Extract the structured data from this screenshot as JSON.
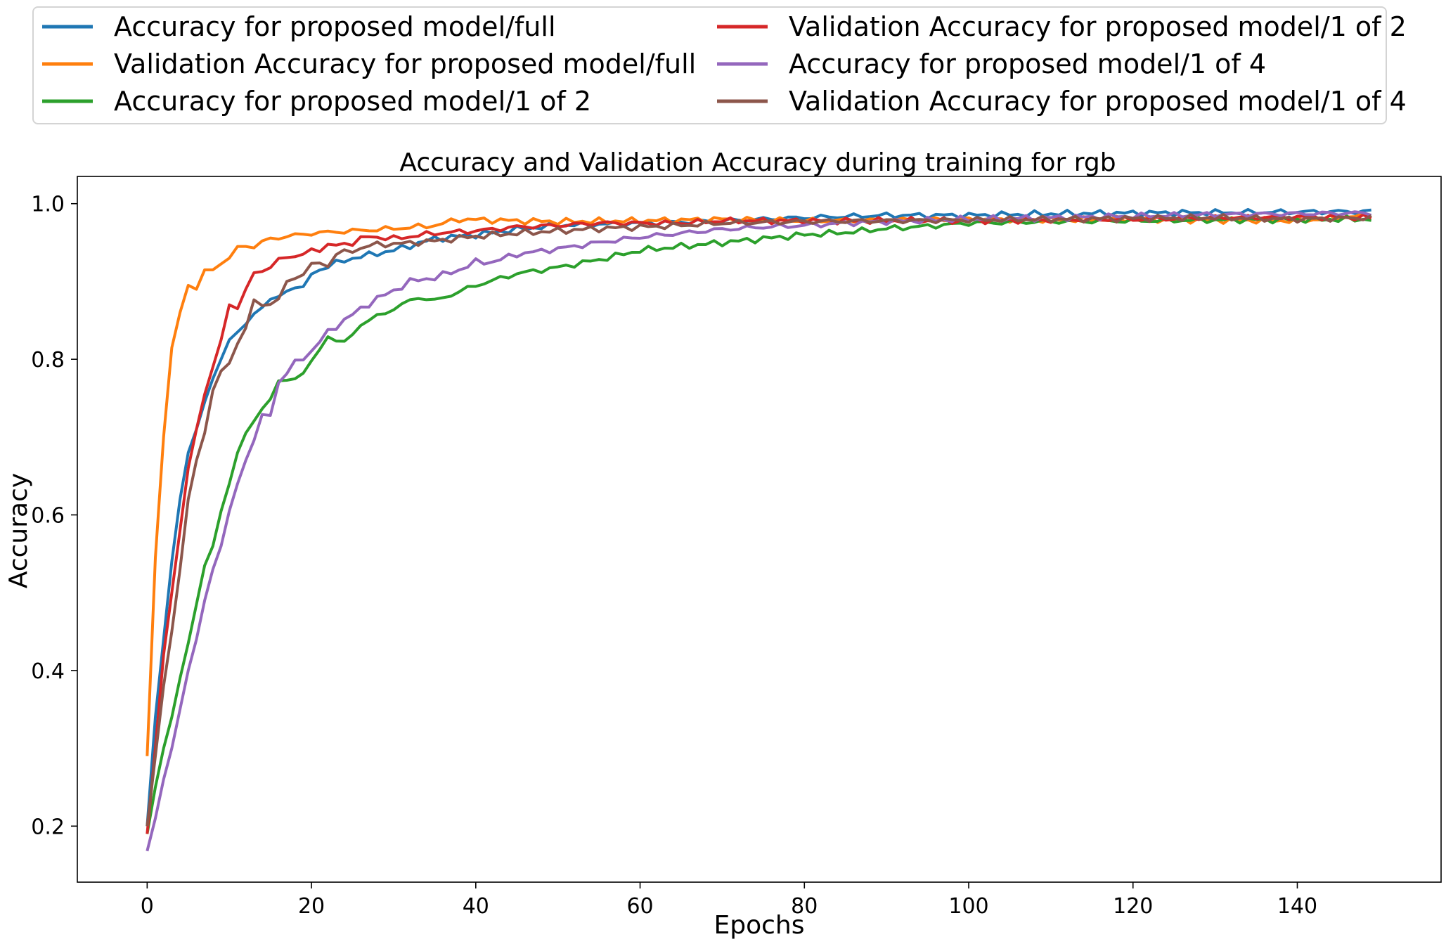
{
  "chart_data": {
    "type": "line",
    "title": "Accuracy and Validation Accuracy during training for rgb",
    "xlabel": "Epochs",
    "ylabel": "Accuracy",
    "xlim": [
      -8.5,
      157.5
    ],
    "ylim": [
      0.128,
      1.035
    ],
    "xticks": [
      0,
      20,
      40,
      60,
      80,
      100,
      120,
      140
    ],
    "yticks": [
      0.2,
      0.4,
      0.6,
      0.8,
      1.0
    ],
    "xtick_labels": [
      "0",
      "20",
      "40",
      "60",
      "80",
      "100",
      "120",
      "140"
    ],
    "ytick_labels": [
      "0.2",
      "0.4",
      "0.6",
      "0.8",
      "1.0"
    ],
    "grid": false,
    "legend_position": "above-plot, two columns",
    "x": {
      "start": 0,
      "end": 149,
      "step": 1
    },
    "series": [
      {
        "name": "Accuracy for proposed model/full",
        "color": "#1f77b4",
        "anchors": [
          [
            0,
            0.2
          ],
          [
            1,
            0.34
          ],
          [
            2,
            0.44
          ],
          [
            3,
            0.54
          ],
          [
            4,
            0.62
          ],
          [
            5,
            0.68
          ],
          [
            6,
            0.71
          ],
          [
            7,
            0.745
          ],
          [
            8,
            0.775
          ],
          [
            9,
            0.8
          ],
          [
            10,
            0.825
          ],
          [
            12,
            0.845
          ],
          [
            14,
            0.87
          ],
          [
            16,
            0.88
          ],
          [
            18,
            0.895
          ],
          [
            19,
            0.89
          ],
          [
            20,
            0.91
          ],
          [
            22,
            0.92
          ],
          [
            25,
            0.93
          ],
          [
            30,
            0.94
          ],
          [
            35,
            0.955
          ],
          [
            40,
            0.96
          ],
          [
            45,
            0.967
          ],
          [
            50,
            0.972
          ],
          [
            60,
            0.975
          ],
          [
            70,
            0.978
          ],
          [
            80,
            0.982
          ],
          [
            90,
            0.985
          ],
          [
            100,
            0.985
          ],
          [
            110,
            0.987
          ],
          [
            120,
            0.988
          ],
          [
            149,
            0.99
          ]
        ]
      },
      {
        "name": "Validation Accuracy for proposed model/full",
        "color": "#ff7f0e",
        "anchors": [
          [
            0,
            0.29
          ],
          [
            1,
            0.545
          ],
          [
            2,
            0.7
          ],
          [
            3,
            0.815
          ],
          [
            4,
            0.86
          ],
          [
            5,
            0.895
          ],
          [
            6,
            0.89
          ],
          [
            7,
            0.915
          ],
          [
            8,
            0.915
          ],
          [
            10,
            0.93
          ],
          [
            11,
            0.945
          ],
          [
            13,
            0.945
          ],
          [
            15,
            0.955
          ],
          [
            20,
            0.962
          ],
          [
            25,
            0.965
          ],
          [
            30,
            0.968
          ],
          [
            35,
            0.972
          ],
          [
            38,
            0.98
          ],
          [
            45,
            0.978
          ],
          [
            50,
            0.977
          ],
          [
            60,
            0.978
          ],
          [
            70,
            0.98
          ],
          [
            80,
            0.978
          ],
          [
            90,
            0.979
          ],
          [
            100,
            0.98
          ],
          [
            110,
            0.979
          ],
          [
            120,
            0.98
          ],
          [
            140,
            0.978
          ],
          [
            149,
            0.985
          ]
        ]
      },
      {
        "name": "Accuracy for proposed model/1 of 2",
        "color": "#2ca02c",
        "anchors": [
          [
            0,
            0.19
          ],
          [
            1,
            0.25
          ],
          [
            2,
            0.3
          ],
          [
            3,
            0.34
          ],
          [
            4,
            0.39
          ],
          [
            5,
            0.435
          ],
          [
            6,
            0.485
          ],
          [
            7,
            0.535
          ],
          [
            8,
            0.56
          ],
          [
            9,
            0.605
          ],
          [
            10,
            0.64
          ],
          [
            11,
            0.68
          ],
          [
            12,
            0.705
          ],
          [
            14,
            0.735
          ],
          [
            16,
            0.77
          ],
          [
            18,
            0.775
          ],
          [
            20,
            0.795
          ],
          [
            22,
            0.83
          ],
          [
            24,
            0.82
          ],
          [
            26,
            0.845
          ],
          [
            28,
            0.855
          ],
          [
            30,
            0.865
          ],
          [
            33,
            0.88
          ],
          [
            35,
            0.875
          ],
          [
            40,
            0.895
          ],
          [
            45,
            0.91
          ],
          [
            50,
            0.918
          ],
          [
            55,
            0.928
          ],
          [
            60,
            0.94
          ],
          [
            65,
            0.945
          ],
          [
            70,
            0.95
          ],
          [
            75,
            0.955
          ],
          [
            80,
            0.96
          ],
          [
            85,
            0.963
          ],
          [
            90,
            0.968
          ],
          [
            95,
            0.971
          ],
          [
            100,
            0.975
          ],
          [
            110,
            0.977
          ],
          [
            120,
            0.978
          ],
          [
            130,
            0.979
          ],
          [
            149,
            0.98
          ]
        ]
      },
      {
        "name": "Validation Accuracy for proposed model/1 of 2",
        "color": "#d62728",
        "anchors": [
          [
            0,
            0.19
          ],
          [
            1,
            0.3
          ],
          [
            2,
            0.42
          ],
          [
            3,
            0.5
          ],
          [
            4,
            0.58
          ],
          [
            5,
            0.66
          ],
          [
            6,
            0.71
          ],
          [
            7,
            0.755
          ],
          [
            8,
            0.79
          ],
          [
            9,
            0.825
          ],
          [
            10,
            0.87
          ],
          [
            11,
            0.865
          ],
          [
            12,
            0.89
          ],
          [
            13,
            0.915
          ],
          [
            14,
            0.912
          ],
          [
            15,
            0.918
          ],
          [
            17,
            0.935
          ],
          [
            18,
            0.93
          ],
          [
            20,
            0.94
          ],
          [
            22,
            0.945
          ],
          [
            25,
            0.95
          ],
          [
            27,
            0.958
          ],
          [
            30,
            0.955
          ],
          [
            35,
            0.962
          ],
          [
            40,
            0.965
          ],
          [
            45,
            0.97
          ],
          [
            50,
            0.972
          ],
          [
            55,
            0.975
          ],
          [
            60,
            0.975
          ],
          [
            65,
            0.975
          ],
          [
            70,
            0.978
          ],
          [
            80,
            0.978
          ],
          [
            90,
            0.978
          ],
          [
            100,
            0.978
          ],
          [
            110,
            0.979
          ],
          [
            120,
            0.98
          ],
          [
            130,
            0.982
          ],
          [
            140,
            0.983
          ],
          [
            149,
            0.982
          ]
        ]
      },
      {
        "name": "Accuracy for proposed model/1 of 4",
        "color": "#9467bd",
        "anchors": [
          [
            0,
            0.168
          ],
          [
            1,
            0.21
          ],
          [
            2,
            0.26
          ],
          [
            3,
            0.3
          ],
          [
            4,
            0.35
          ],
          [
            5,
            0.4
          ],
          [
            6,
            0.44
          ],
          [
            7,
            0.49
          ],
          [
            8,
            0.53
          ],
          [
            9,
            0.56
          ],
          [
            10,
            0.605
          ],
          [
            11,
            0.64
          ],
          [
            12,
            0.67
          ],
          [
            14,
            0.725
          ],
          [
            15,
            0.73
          ],
          [
            16,
            0.77
          ],
          [
            18,
            0.795
          ],
          [
            20,
            0.81
          ],
          [
            22,
            0.835
          ],
          [
            24,
            0.85
          ],
          [
            26,
            0.865
          ],
          [
            28,
            0.878
          ],
          [
            30,
            0.888
          ],
          [
            32,
            0.9
          ],
          [
            35,
            0.905
          ],
          [
            38,
            0.915
          ],
          [
            40,
            0.925
          ],
          [
            42,
            0.925
          ],
          [
            45,
            0.935
          ],
          [
            50,
            0.942
          ],
          [
            55,
            0.95
          ],
          [
            60,
            0.957
          ],
          [
            65,
            0.962
          ],
          [
            70,
            0.967
          ],
          [
            75,
            0.97
          ],
          [
            80,
            0.972
          ],
          [
            85,
            0.975
          ],
          [
            90,
            0.977
          ],
          [
            100,
            0.98
          ],
          [
            110,
            0.982
          ],
          [
            120,
            0.984
          ],
          [
            130,
            0.986
          ],
          [
            149,
            0.988
          ]
        ]
      },
      {
        "name": "Validation Accuracy for proposed model/1 of 4",
        "color": "#8c564b",
        "anchors": [
          [
            0,
            0.2
          ],
          [
            1,
            0.29
          ],
          [
            2,
            0.38
          ],
          [
            3,
            0.45
          ],
          [
            4,
            0.53
          ],
          [
            5,
            0.62
          ],
          [
            6,
            0.67
          ],
          [
            7,
            0.705
          ],
          [
            8,
            0.76
          ],
          [
            9,
            0.785
          ],
          [
            10,
            0.795
          ],
          [
            11,
            0.82
          ],
          [
            12,
            0.84
          ],
          [
            13,
            0.875
          ],
          [
            14,
            0.87
          ],
          [
            16,
            0.875
          ],
          [
            17,
            0.9
          ],
          [
            19,
            0.91
          ],
          [
            20,
            0.92
          ],
          [
            21,
            0.925
          ],
          [
            22,
            0.92
          ],
          [
            23,
            0.935
          ],
          [
            25,
            0.94
          ],
          [
            28,
            0.948
          ],
          [
            30,
            0.948
          ],
          [
            35,
            0.952
          ],
          [
            40,
            0.958
          ],
          [
            45,
            0.962
          ],
          [
            50,
            0.965
          ],
          [
            55,
            0.968
          ],
          [
            60,
            0.97
          ],
          [
            65,
            0.972
          ],
          [
            70,
            0.975
          ],
          [
            80,
            0.977
          ],
          [
            90,
            0.978
          ],
          [
            100,
            0.979
          ],
          [
            110,
            0.98
          ],
          [
            120,
            0.981
          ],
          [
            130,
            0.982
          ],
          [
            140,
            0.98
          ],
          [
            149,
            0.982
          ]
        ]
      }
    ]
  }
}
